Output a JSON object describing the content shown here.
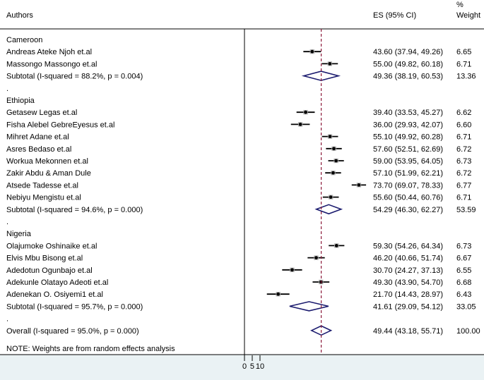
{
  "chart_data": {
    "type": "forest",
    "columns": {
      "study": "Authors",
      "es": "ES (95% CI)",
      "weight_line1": "%",
      "weight_line2": "Weight"
    },
    "null_line": 0,
    "overall_line": 49.44,
    "x_ticks": [
      "0",
      "5",
      "10"
    ],
    "rows": [
      {
        "kind": "group",
        "label": "Cameroon"
      },
      {
        "kind": "study",
        "label": "Andreas Ateke Njoh et.al",
        "es": 43.6,
        "lo": 37.94,
        "hi": 49.26,
        "es_text": "43.60 (37.94, 49.26)",
        "weight": "6.65"
      },
      {
        "kind": "study",
        "label": "Massongo Massongo et.al",
        "es": 55.0,
        "lo": 49.82,
        "hi": 60.18,
        "es_text": "55.00 (49.82, 60.18)",
        "weight": "6.71"
      },
      {
        "kind": "subtotal",
        "label": "Subtotal  (I-squared = 88.2%, p = 0.004)",
        "es": 49.36,
        "lo": 38.19,
        "hi": 60.53,
        "es_text": "49.36 (38.19, 60.53)",
        "weight": "13.36"
      },
      {
        "kind": "dot",
        "label": "."
      },
      {
        "kind": "group",
        "label": "Ethiopia"
      },
      {
        "kind": "study",
        "label": "Getasew Legas et.al",
        "es": 39.4,
        "lo": 33.53,
        "hi": 45.27,
        "es_text": "39.40 (33.53, 45.27)",
        "weight": "6.62"
      },
      {
        "kind": "study",
        "label": "Fisha Alebel GebreEyesus et.al",
        "es": 36.0,
        "lo": 29.93,
        "hi": 42.07,
        "es_text": "36.00 (29.93, 42.07)",
        "weight": "6.60"
      },
      {
        "kind": "study",
        "label": "Mihret Adane et.al",
        "es": 55.1,
        "lo": 49.92,
        "hi": 60.28,
        "es_text": "55.10 (49.92, 60.28)",
        "weight": "6.71"
      },
      {
        "kind": "study",
        "label": "Asres Bedaso et.al",
        "es": 57.6,
        "lo": 52.51,
        "hi": 62.69,
        "es_text": "57.60 (52.51, 62.69)",
        "weight": "6.72"
      },
      {
        "kind": "study",
        "label": "Workua Mekonnen et.al",
        "es": 59.0,
        "lo": 53.95,
        "hi": 64.05,
        "es_text": "59.00 (53.95, 64.05)",
        "weight": "6.73"
      },
      {
        "kind": "study",
        "label": "Zakir Abdu & Aman Dule",
        "es": 57.1,
        "lo": 51.99,
        "hi": 62.21,
        "es_text": "57.10 (51.99, 62.21)",
        "weight": "6.72"
      },
      {
        "kind": "study",
        "label": "Atsede Tadesse et.al",
        "es": 73.7,
        "lo": 69.07,
        "hi": 78.33,
        "es_text": "73.70 (69.07, 78.33)",
        "weight": "6.77"
      },
      {
        "kind": "study",
        "label": "Nebiyu Mengistu et.al",
        "es": 55.6,
        "lo": 50.44,
        "hi": 60.76,
        "es_text": "55.60 (50.44, 60.76)",
        "weight": "6.71"
      },
      {
        "kind": "subtotal",
        "label": "Subtotal  (I-squared = 94.6%, p = 0.000)",
        "es": 54.29,
        "lo": 46.3,
        "hi": 62.27,
        "es_text": "54.29 (46.30, 62.27)",
        "weight": "53.59"
      },
      {
        "kind": "dot",
        "label": "."
      },
      {
        "kind": "group",
        "label": "Nigeria"
      },
      {
        "kind": "study",
        "label": "Olajumoke Oshinaike et.al",
        "es": 59.3,
        "lo": 54.26,
        "hi": 64.34,
        "es_text": "59.30 (54.26, 64.34)",
        "weight": "6.73"
      },
      {
        "kind": "study",
        "label": "Elvis Mbu Bisong et.al",
        "es": 46.2,
        "lo": 40.66,
        "hi": 51.74,
        "es_text": "46.20 (40.66, 51.74)",
        "weight": "6.67"
      },
      {
        "kind": "study",
        "label": "Adedotun Ogunbajo et.al",
        "es": 30.7,
        "lo": 24.27,
        "hi": 37.13,
        "es_text": "30.70 (24.27, 37.13)",
        "weight": "6.55"
      },
      {
        "kind": "study",
        "label": "Adekunle Olatayo Adeoti et.al",
        "es": 49.3,
        "lo": 43.9,
        "hi": 54.7,
        "es_text": "49.30 (43.90, 54.70)",
        "weight": "6.68"
      },
      {
        "kind": "study",
        "label": "Adenekan O. Osiyemi1 et.al",
        "es": 21.7,
        "lo": 14.43,
        "hi": 28.97,
        "es_text": "21.70 (14.43, 28.97)",
        "weight": "6.43"
      },
      {
        "kind": "subtotal",
        "label": "Subtotal  (I-squared = 95.7%, p = 0.000)",
        "es": 41.61,
        "lo": 29.09,
        "hi": 54.12,
        "es_text": "41.61 (29.09, 54.12)",
        "weight": "33.05"
      },
      {
        "kind": "dot",
        "label": "."
      },
      {
        "kind": "overall",
        "label": "Overall  (I-squared = 95.0%, p = 0.000)",
        "es": 49.44,
        "lo": 43.18,
        "hi": 55.71,
        "es_text": "49.44 (43.18, 55.71)",
        "weight": "100.00"
      }
    ],
    "note": "NOTE: Weights are from random effects analysis",
    "colors": {
      "ci_line": "#000000",
      "point": "#000000",
      "point_box": "#b4b4b4",
      "diamond": "#1a1a6e",
      "overall_line": "#8b1a3a",
      "null_line": "#000000",
      "bottom_band": "#eaf2f4"
    }
  }
}
